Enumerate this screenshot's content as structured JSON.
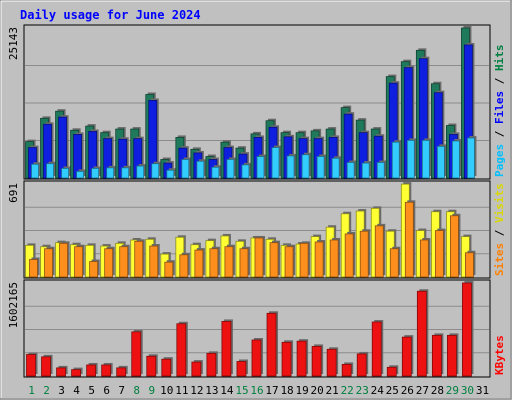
{
  "chart_data": {
    "type": "bar",
    "title": "Daily usage for June 2024",
    "categories": [
      "1",
      "2",
      "3",
      "4",
      "5",
      "6",
      "7",
      "8",
      "9",
      "10",
      "11",
      "12",
      "13",
      "14",
      "15",
      "16",
      "17",
      "18",
      "19",
      "20",
      "21",
      "22",
      "23",
      "24",
      "25",
      "26",
      "27",
      "28",
      "29",
      "30",
      "31"
    ],
    "weekend_days": [
      1,
      2,
      8,
      9,
      15,
      16,
      22,
      23,
      29,
      30
    ],
    "panels": [
      {
        "name": "hits-files-pages",
        "ymax": 25143,
        "ymax_label": "25143",
        "side_labels": [
          {
            "text": "Pages",
            "color": "#00c0ff"
          },
          {
            "text": " / ",
            "color": "#000000"
          },
          {
            "text": "Files",
            "color": "#0000ff"
          },
          {
            "text": " / ",
            "color": "#000000"
          },
          {
            "text": "Hits",
            "color": "#008040"
          }
        ],
        "series": [
          {
            "name": "Hits",
            "color": "#1f7a5c",
            "values": [
              6100,
              10000,
              11200,
              8000,
              8700,
              7600,
              8200,
              8200,
              14000,
              3100,
              6800,
              4800,
              3600,
              6000,
              5000,
              7400,
              9600,
              7600,
              7600,
              7900,
              8200,
              11800,
              9700,
              8200,
              17000,
              19500,
              21400,
              15800,
              8800,
              25143,
              null
            ]
          },
          {
            "name": "Files",
            "color": "#0f1fe0",
            "values": [
              5100,
              9000,
              10200,
              7300,
              7800,
              6600,
              6500,
              6600,
              13000,
              2500,
              5000,
              4200,
              3100,
              5100,
              4000,
              6800,
              8500,
              6900,
              6600,
              6600,
              6800,
              10700,
              7600,
              7000,
              15900,
              18500,
              20000,
              14300,
              7300,
              22300,
              null
            ]
          },
          {
            "name": "Pages",
            "color": "#33ccff",
            "values": [
              2300,
              2400,
              1600,
              1100,
              1600,
              1700,
              1700,
              2000,
              2400,
              1300,
              3100,
              2800,
              1800,
              3100,
              2200,
              3600,
              5100,
              3700,
              3900,
              3600,
              3300,
              2600,
              2500,
              2600,
              6000,
              6300,
              6300,
              5300,
              6200,
              6700,
              null
            ]
          }
        ]
      },
      {
        "name": "visits-sites",
        "ymax": 691,
        "ymax_label": "691",
        "side_labels": [
          {
            "text": "Sites",
            "color": "#ff8000"
          },
          {
            "text": " / ",
            "color": "#000000"
          },
          {
            "text": "Visits",
            "color": "#d8d800"
          }
        ],
        "series": [
          {
            "name": "Visits",
            "color": "#ffff33",
            "values": [
              235,
              225,
              255,
              240,
              235,
              230,
              250,
              275,
              280,
              170,
              295,
              240,
              270,
              305,
              265,
              290,
              280,
              235,
              245,
              300,
              370,
              470,
              490,
              510,
              340,
              690,
              345,
              485,
              485,
              300,
              null
            ]
          },
          {
            "name": "Sites",
            "color": "#ff8f1c",
            "values": [
              130,
              210,
              250,
              225,
              115,
              210,
              225,
              265,
              230,
              110,
              165,
              200,
              210,
              225,
              210,
              290,
              255,
              225,
              250,
              260,
              275,
              320,
              340,
              380,
              210,
              555,
              275,
              345,
              455,
              180,
              null
            ]
          }
        ]
      },
      {
        "name": "kbytes",
        "ymax": 1602165,
        "ymax_label": "1602165",
        "side_labels": [
          {
            "text": "KBytes",
            "color": "#ff0000"
          }
        ],
        "series": [
          {
            "name": "KBytes",
            "color": "#ee1111",
            "values": [
              370000,
              330000,
              140000,
              110000,
              190000,
              190000,
              140000,
              760000,
              340000,
              290000,
              900000,
              240000,
              390000,
              940000,
              250000,
              620000,
              1080000,
              580000,
              600000,
              510000,
              460000,
              200000,
              380000,
              930000,
              150000,
              670000,
              1460000,
              700000,
              700000,
              1602165,
              null
            ]
          }
        ]
      }
    ]
  }
}
